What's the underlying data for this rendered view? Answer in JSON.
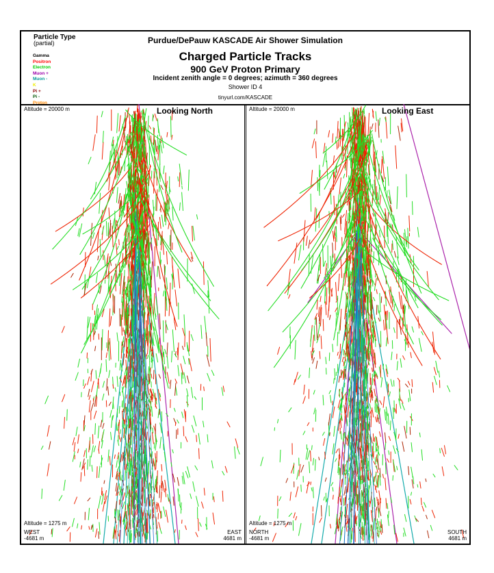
{
  "legend": {
    "title": "Particle Type",
    "subtitle": "(partial)",
    "items": [
      {
        "label": "Gamma",
        "color": "#000000"
      },
      {
        "label": "Positron",
        "color": "#ff0000"
      },
      {
        "label": "Electron",
        "color": "#00cc00"
      },
      {
        "label": "Muon +",
        "color": "#9900aa"
      },
      {
        "label": "Muon -",
        "color": "#009999"
      },
      {
        "label": "K",
        "color": "#eeee00"
      },
      {
        "label": "Pi +",
        "color": "#880000"
      },
      {
        "label": "Pi -",
        "color": "#005500"
      },
      {
        "label": "Proton",
        "color": "#ff8800"
      }
    ]
  },
  "header": {
    "sim_title": "Purdue/DePauw KASCADE Air Shower Simulation",
    "main_title": "Charged Particle Tracks",
    "sub_title": "900 GeV Proton Primary",
    "angle_line": "Incident zenith angle =  0 degrees;  azimuth =  360 degrees",
    "shower_id": "Shower ID 4",
    "url": "tinyurl.com/KASCADE"
  },
  "panels": [
    {
      "view_label": "Looking North",
      "altitude_top": "Altitude = 20000 m",
      "altitude_bottom": "Altitude = 1275 m",
      "left_dir": "WEST",
      "left_dist": "-4681 m",
      "right_dir": "EAST",
      "right_dist": "4681 m"
    },
    {
      "view_label": "Looking East",
      "altitude_top": "Altitude = 20000 m",
      "altitude_bottom": "Altitude = 1275 m",
      "left_dir": "NORTH",
      "left_dist": "-4681 m",
      "right_dir": "SOUTH",
      "right_dist": "4681 m"
    }
  ],
  "track_colors": {
    "electron": "#22dd22",
    "positron": "#ee2200",
    "pi_plus": "#aa2200",
    "muon_plus": "#aa22aa",
    "muon_minus": "#11aaaa",
    "muon_core": "#2266cc"
  }
}
